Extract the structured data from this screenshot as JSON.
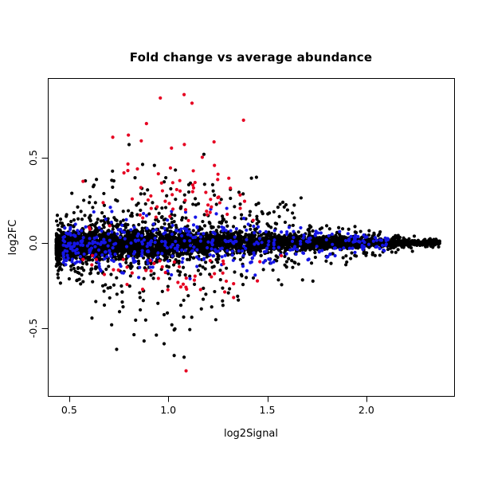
{
  "chart_data": {
    "type": "scatter",
    "title": "Fold change vs average abundance",
    "xlabel": "log2Signal",
    "ylabel": "log2FC",
    "xlim": [
      0.392,
      2.443
    ],
    "ylim": [
      -0.897,
      0.967
    ],
    "xticks": [
      0.5,
      1.0,
      1.5,
      2.0
    ],
    "xtick_labels": [
      "0.5",
      "1.0",
      "1.5",
      "2.0"
    ],
    "yticks": [
      -0.5,
      0.0,
      0.5
    ],
    "ytick_labels": [
      "-0.5",
      "0.0",
      "0.5"
    ],
    "grid": false,
    "legend": "none",
    "background_color": "#ffffff",
    "axis_color": "#000000",
    "point_radius": 2.1,
    "generator_seed": 20130514,
    "series": [
      {
        "name": "all-probes-black",
        "color": "#000000",
        "n": 5200,
        "mode": "funnel",
        "xmin": 0.435,
        "xmax": 2.37,
        "xpow": 1.65,
        "components": [
          {
            "weight": 0.8,
            "sd_key": "core_sd"
          },
          {
            "weight": 0.2,
            "sd_key": "tail_sd"
          }
        ]
      },
      {
        "name": "highlighted-blue",
        "color": "#1515e6",
        "n": 430,
        "mode": "funnel",
        "xmin": 0.47,
        "xmax": 2.12,
        "xpow": 1.5,
        "components": [
          {
            "weight": 1.0,
            "sd_key": "blue_sd"
          }
        ]
      },
      {
        "name": "highlighted-red",
        "color": "#e60021",
        "n": 110,
        "mode": "band",
        "xcenter": 1.02,
        "xsd": 0.24,
        "xmin": 0.57,
        "xmax": 1.62,
        "pos_frac": 0.55,
        "pos_min": 0.13,
        "pos_sd": 0.21,
        "neg_min": 0.1,
        "neg_sd": 0.11,
        "max_abs": 0.88,
        "taper_x": [
          0.57,
          0.8,
          1.05,
          1.3,
          1.62
        ],
        "taper_f": [
          0.55,
          0.9,
          1.0,
          0.9,
          0.6
        ]
      }
    ],
    "profiles": {
      "x_knots": [
        0.44,
        0.6,
        0.8,
        1.0,
        1.2,
        1.5,
        1.8,
        2.1,
        2.37
      ],
      "core_sd": [
        0.026,
        0.036,
        0.042,
        0.042,
        0.036,
        0.026,
        0.016,
        0.009,
        0.004
      ],
      "tail_sd": [
        0.07,
        0.15,
        0.21,
        0.23,
        0.2,
        0.13,
        0.07,
        0.032,
        0.012
      ],
      "blue_sd": [
        0.045,
        0.075,
        0.095,
        0.1,
        0.09,
        0.065,
        0.045,
        0.025,
        0.012
      ],
      "mean_y": [
        -0.022,
        -0.015,
        -0.008,
        -0.004,
        0,
        0,
        0,
        0,
        0
      ]
    },
    "outlier_points": [
      {
        "x": 0.96,
        "y": 0.85,
        "color": "#e60021"
      },
      {
        "x": 1.08,
        "y": 0.87,
        "color": "#e60021"
      },
      {
        "x": 1.12,
        "y": 0.82,
        "color": "#e60021"
      },
      {
        "x": 0.89,
        "y": 0.7,
        "color": "#e60021"
      },
      {
        "x": 1.38,
        "y": 0.72,
        "color": "#e60021"
      },
      {
        "x": 0.72,
        "y": 0.62,
        "color": "#e60021"
      },
      {
        "x": 1.09,
        "y": -0.75,
        "color": "#e60021"
      },
      {
        "x": 1.33,
        "y": -0.32,
        "color": "#e60021"
      },
      {
        "x": 0.94,
        "y": -0.54,
        "color": "#000000"
      },
      {
        "x": 1.03,
        "y": -0.51,
        "color": "#000000"
      },
      {
        "x": 1.03,
        "y": -0.66,
        "color": "#000000"
      },
      {
        "x": 1.08,
        "y": -0.67,
        "color": "#000000"
      },
      {
        "x": 1.24,
        "y": -0.45,
        "color": "#000000"
      },
      {
        "x": 1.18,
        "y": 0.52,
        "color": "#000000"
      },
      {
        "x": 1.42,
        "y": 0.38,
        "color": "#000000"
      }
    ]
  }
}
